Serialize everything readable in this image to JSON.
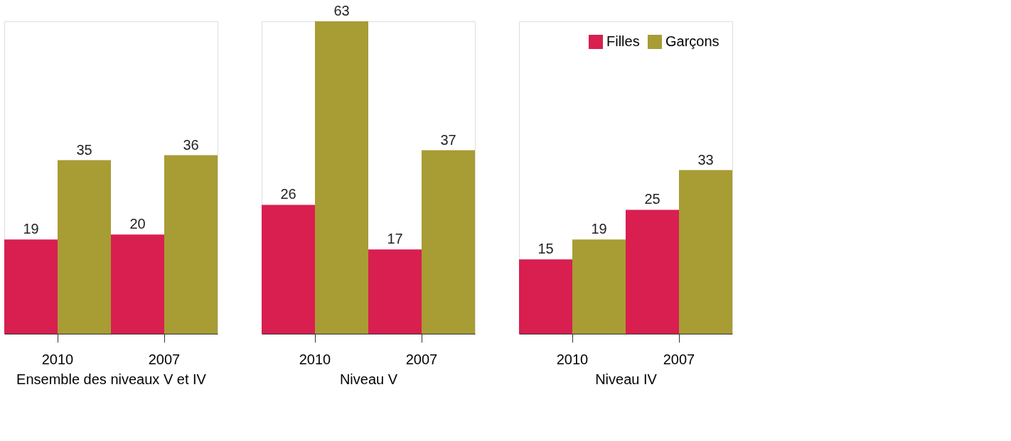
{
  "chart_data": {
    "type": "bar",
    "categories": [
      "2010",
      "2007",
      "2010",
      "2007",
      "2010",
      "2007"
    ],
    "series": [
      {
        "name": "Filles",
        "color": "#d81f4f",
        "values": [
          19,
          20,
          26,
          17,
          15,
          25
        ]
      },
      {
        "name": "Garçons",
        "color": "#a89c35",
        "values": [
          35,
          36,
          63,
          37,
          19,
          33
        ]
      }
    ],
    "annotations": [
      "Ensemble des niveaux V et IV",
      "Niveau V",
      "Niveau IV"
    ],
    "data_labels": true,
    "legend": "top right",
    "tick_labels": "x",
    "grid": false
  }
}
